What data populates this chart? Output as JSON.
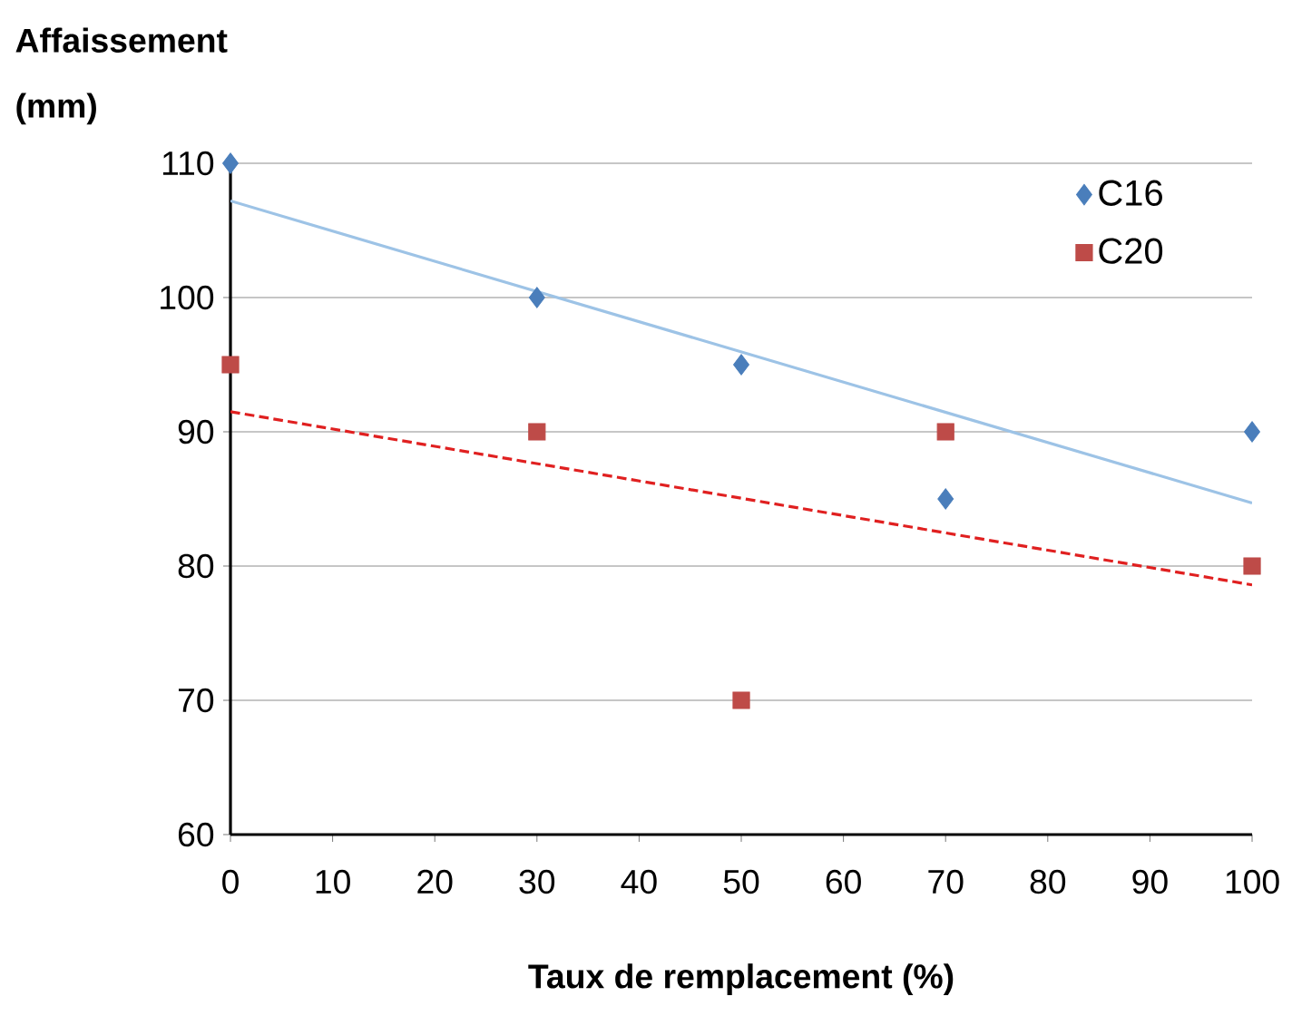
{
  "chart_data": {
    "type": "scatter",
    "xlabel": "Taux de remplacement (%)",
    "ylabel": "Affaissement (mm)",
    "xlim": [
      0,
      100
    ],
    "ylim": [
      60,
      110
    ],
    "xticks": [
      0,
      10,
      20,
      30,
      40,
      50,
      60,
      70,
      80,
      90,
      100
    ],
    "yticks": [
      60,
      70,
      80,
      90,
      100,
      110
    ],
    "grid": "y",
    "legend": "top right",
    "series": [
      {
        "name": "C16",
        "marker": "diamond",
        "color": "#4a7ebb",
        "x": [
          0,
          30,
          50,
          70,
          100
        ],
        "values": [
          110,
          100,
          95,
          85,
          90
        ]
      },
      {
        "name": "C20",
        "marker": "square",
        "color": "#be4b48",
        "x": [
          0,
          30,
          50,
          70,
          100
        ],
        "values": [
          95,
          90,
          70,
          90,
          80
        ]
      },
      {
        "type": "line",
        "marker": "none",
        "line_style": "solid",
        "color": "#9dc3e6",
        "x": [
          0,
          100
        ],
        "values": [
          107.2,
          84.7
        ]
      },
      {
        "type": "line",
        "marker": "none",
        "line_style": "dashed",
        "color": "#e02020",
        "x": [
          0,
          100
        ],
        "values": [
          91.5,
          78.6
        ]
      }
    ]
  }
}
